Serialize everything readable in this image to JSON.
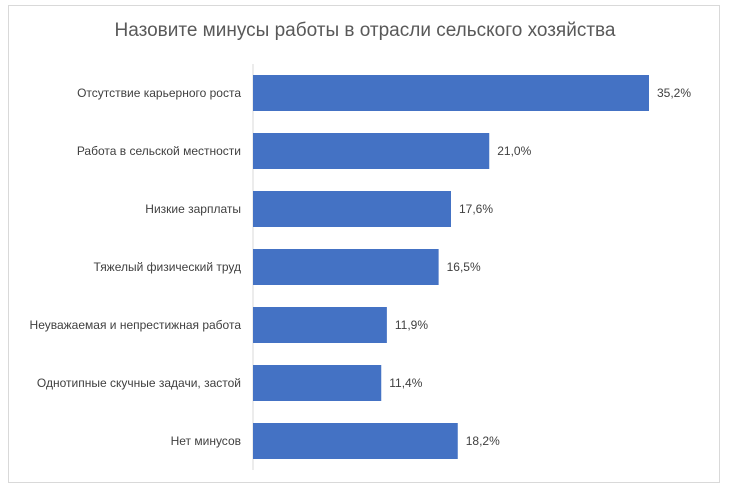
{
  "chart_data": {
    "type": "bar",
    "orientation": "horizontal",
    "title": "Назовите минусы работы в отрасли сельского хозяйства",
    "categories": [
      "Отсутствие карьерного роста",
      "Работа в сельской местности",
      "Низкие зарплаты",
      "Тяжелый физический труд",
      "Неуважаемая и непрестижная работа",
      "Однотипные скучные задачи, застой",
      "Нет минусов"
    ],
    "values": [
      35.2,
      21.0,
      17.6,
      16.5,
      11.9,
      11.4,
      18.2
    ],
    "value_labels": [
      "35,2%",
      "21,0%",
      "17,6%",
      "16,5%",
      "11,9%",
      "11,4%",
      "18,2%"
    ],
    "xlim": [
      0,
      40
    ],
    "grid": false,
    "bar_color": "#4472c4"
  }
}
